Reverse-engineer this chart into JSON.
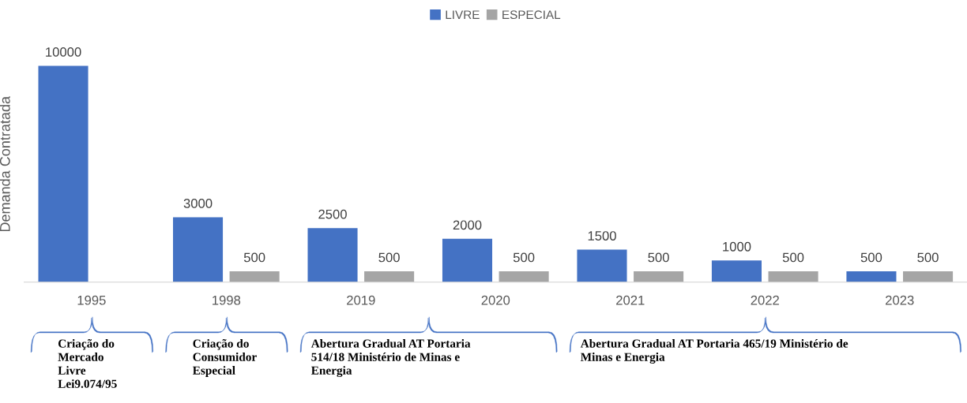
{
  "chart_data": {
    "type": "bar",
    "categories": [
      "1995",
      "1998",
      "2019",
      "2020",
      "2021",
      "2022",
      "2023"
    ],
    "series": [
      {
        "name": "LIVRE",
        "color": "#4472c4",
        "values": [
          10000,
          3000,
          2500,
          2000,
          1500,
          1000,
          500
        ]
      },
      {
        "name": "ESPECIAL",
        "color": "#a5a5a5",
        "values": [
          null,
          500,
          500,
          500,
          500,
          500,
          500
        ]
      }
    ],
    "ylabel": "Demanda Contratada",
    "data_labels": true,
    "legend": "top",
    "tick_labels": "x",
    "grid": false,
    "annotations": [
      "Criação do\nMercado\nLivre\nLei9.074/95",
      "Criação do\nConsumidor\nEspecial",
      "Abertura Gradual AT Portaria\n514/18 Ministério de Minas e\nEnergia",
      "Abertura Gradual AT Portaria 465/19 Ministério de\nMinas e Energia"
    ]
  }
}
